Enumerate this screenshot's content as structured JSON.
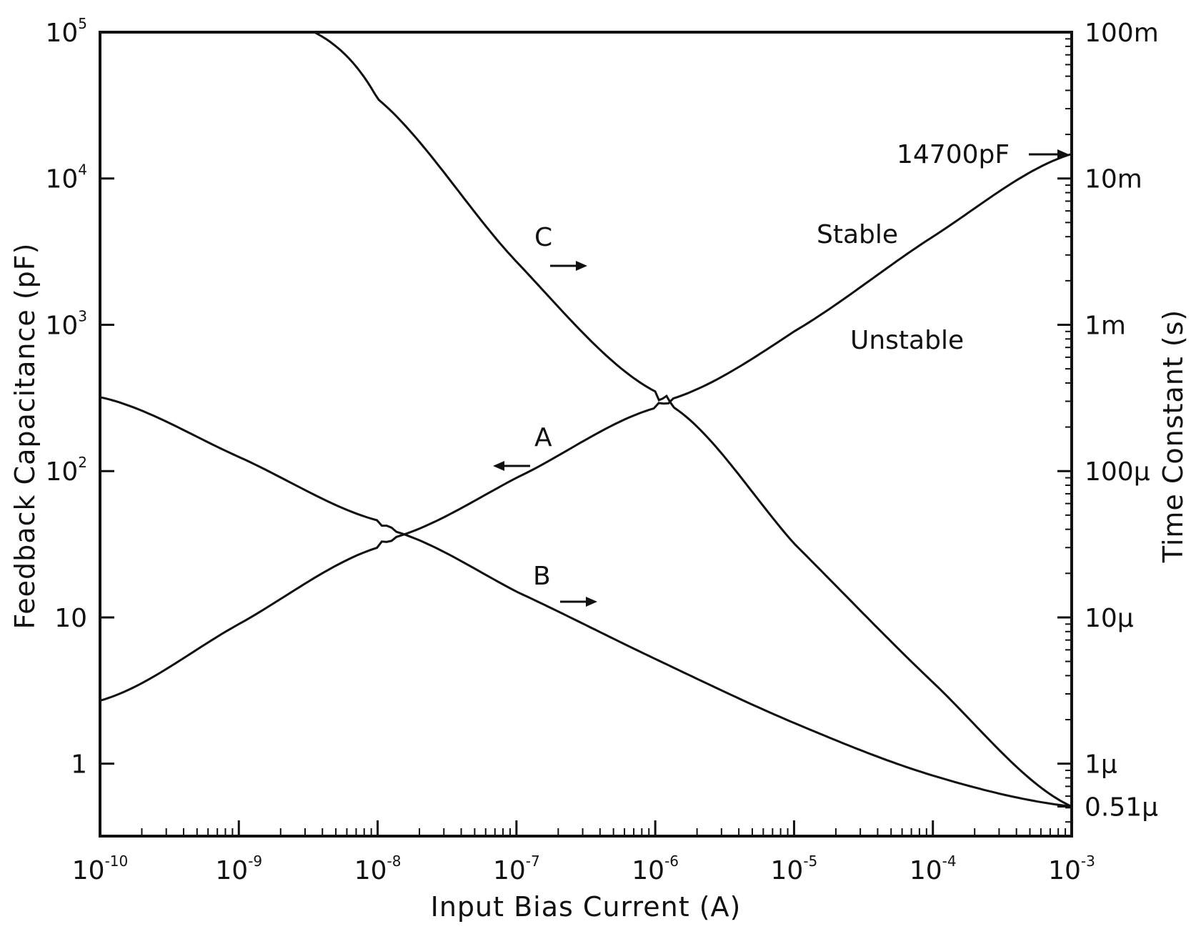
{
  "chart_data": {
    "type": "line",
    "title": "",
    "xlabel": "Input Bias Current (A)",
    "ylabel_left": "Feedback Capacitance (pF)",
    "ylabel_right": "Time Constant (s)",
    "x_scale": "log",
    "y_scale": "log",
    "xlim": [
      1e-10,
      0.001
    ],
    "ylim_left": [
      0.32,
      100000
    ],
    "ylim_right": [
      3.2e-07,
      0.1
    ],
    "x_ticks": [
      {
        "base": "10",
        "exp": "-10",
        "value": 1e-10
      },
      {
        "base": "10",
        "exp": "-9",
        "value": 1e-09
      },
      {
        "base": "10",
        "exp": "-8",
        "value": 1e-08
      },
      {
        "base": "10",
        "exp": "-7",
        "value": 1e-07
      },
      {
        "base": "10",
        "exp": "-6",
        "value": 1e-06
      },
      {
        "base": "10",
        "exp": "-5",
        "value": 1e-05
      },
      {
        "base": "10",
        "exp": "-4",
        "value": 0.0001
      },
      {
        "base": "10",
        "exp": "-3",
        "value": 0.001
      }
    ],
    "y_left_ticks": [
      {
        "base": "1",
        "exp": "",
        "value": 1
      },
      {
        "base": "10",
        "exp": "",
        "value": 10
      },
      {
        "base": "10",
        "exp": "2",
        "value": 100
      },
      {
        "base": "10",
        "exp": "3",
        "value": 1000
      },
      {
        "base": "10",
        "exp": "4",
        "value": 10000
      },
      {
        "base": "10",
        "exp": "5",
        "value": 100000
      }
    ],
    "y_right_ticks": [
      {
        "label": "0.51μ",
        "value": 5.1e-07
      },
      {
        "label": "1μ",
        "value": 1e-06
      },
      {
        "label": "10μ",
        "value": 1e-05
      },
      {
        "label": "100μ",
        "value": 0.0001
      },
      {
        "label": "1m",
        "value": 0.001
      },
      {
        "label": "10m",
        "value": 0.01
      },
      {
        "label": "100m",
        "value": 0.1
      }
    ],
    "series": [
      {
        "name": "A",
        "axis": "left",
        "points": [
          [
            1e-10,
            2.7
          ],
          [
            1e-09,
            9.0
          ],
          [
            1e-08,
            30
          ],
          [
            1.3e-08,
            35
          ],
          [
            1e-07,
            90
          ],
          [
            1e-06,
            270
          ],
          [
            1.3e-06,
            310
          ],
          [
            1e-05,
            900
          ],
          [
            0.0001,
            4000
          ],
          [
            0.001,
            14700
          ]
        ]
      },
      {
        "name": "B",
        "axis": "right",
        "points": [
          [
            1e-10,
            0.00032
          ],
          [
            1e-09,
            0.000125
          ],
          [
            1e-08,
            4.6e-05
          ],
          [
            1.3e-08,
            3.9e-05
          ],
          [
            1e-07,
            1.5e-05
          ],
          [
            1e-06,
            5.2e-06
          ],
          [
            1e-05,
            1.9e-06
          ],
          [
            0.0001,
            8.3e-07
          ],
          [
            0.001,
            5.1e-07
          ]
        ]
      },
      {
        "name": "C",
        "axis": "right",
        "points": [
          [
            3.5e-09,
            0.1
          ],
          [
            1e-08,
            0.035
          ],
          [
            1e-07,
            0.0027
          ],
          [
            1e-06,
            0.00035
          ],
          [
            1.3e-06,
            0.00028
          ],
          [
            1e-05,
            3.2e-05
          ],
          [
            0.0001,
            3.6e-06
          ],
          [
            0.001,
            5.1e-07
          ]
        ]
      }
    ],
    "annotations": [
      {
        "text": "C",
        "arrow": "right"
      },
      {
        "text": "A",
        "arrow": "left"
      },
      {
        "text": "B",
        "arrow": "right"
      },
      {
        "text": "Stable"
      },
      {
        "text": "Unstable"
      },
      {
        "text": "14700pF",
        "arrow": "right"
      }
    ],
    "grid": false,
    "legend": "none"
  }
}
